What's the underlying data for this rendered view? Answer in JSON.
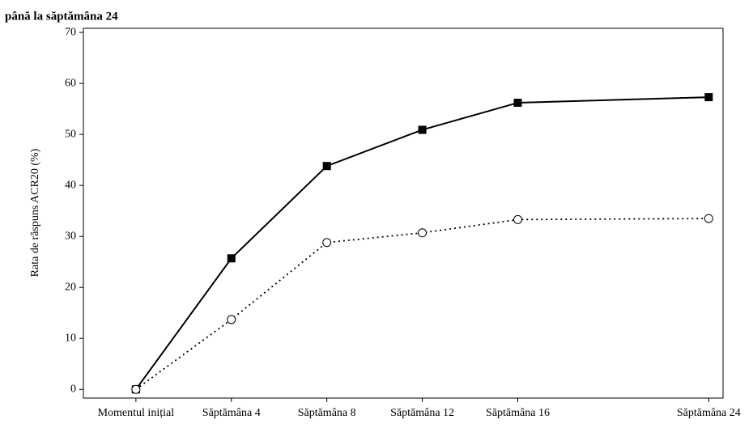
{
  "chart_data": {
    "type": "line",
    "title": "până la săptămâna 24",
    "y_label": "Rata de răspuns ACR20 (%)",
    "x": [
      0,
      4,
      8,
      12,
      16,
      24
    ],
    "xlim": [
      -2.2,
      24.6
    ],
    "xticks": [
      {
        "value": 0,
        "label": "Momentul inițial"
      },
      {
        "value": 4,
        "label": "Săptămâna 4"
      },
      {
        "value": 8,
        "label": "Săptămâna 8"
      },
      {
        "value": 12,
        "label": "Săptămâna 12"
      },
      {
        "value": 16,
        "label": "Săptămâna 16"
      },
      {
        "value": 24,
        "label": "Săptămâna 24"
      }
    ],
    "ylim": [
      -1.7,
      70.8
    ],
    "yticks": [
      0,
      10,
      20,
      30,
      40,
      50,
      60,
      70
    ],
    "grid": false,
    "series": [
      {
        "color": "#000000",
        "line_style": "solid",
        "marker": "square",
        "values": [
          0,
          25.7,
          43.8,
          50.9,
          56.2,
          57.3
        ]
      },
      {
        "color": "#000000",
        "line_style": "dotted",
        "marker": "circle",
        "values": [
          0,
          13.7,
          28.8,
          30.7,
          33.3,
          33.5
        ]
      }
    ]
  }
}
